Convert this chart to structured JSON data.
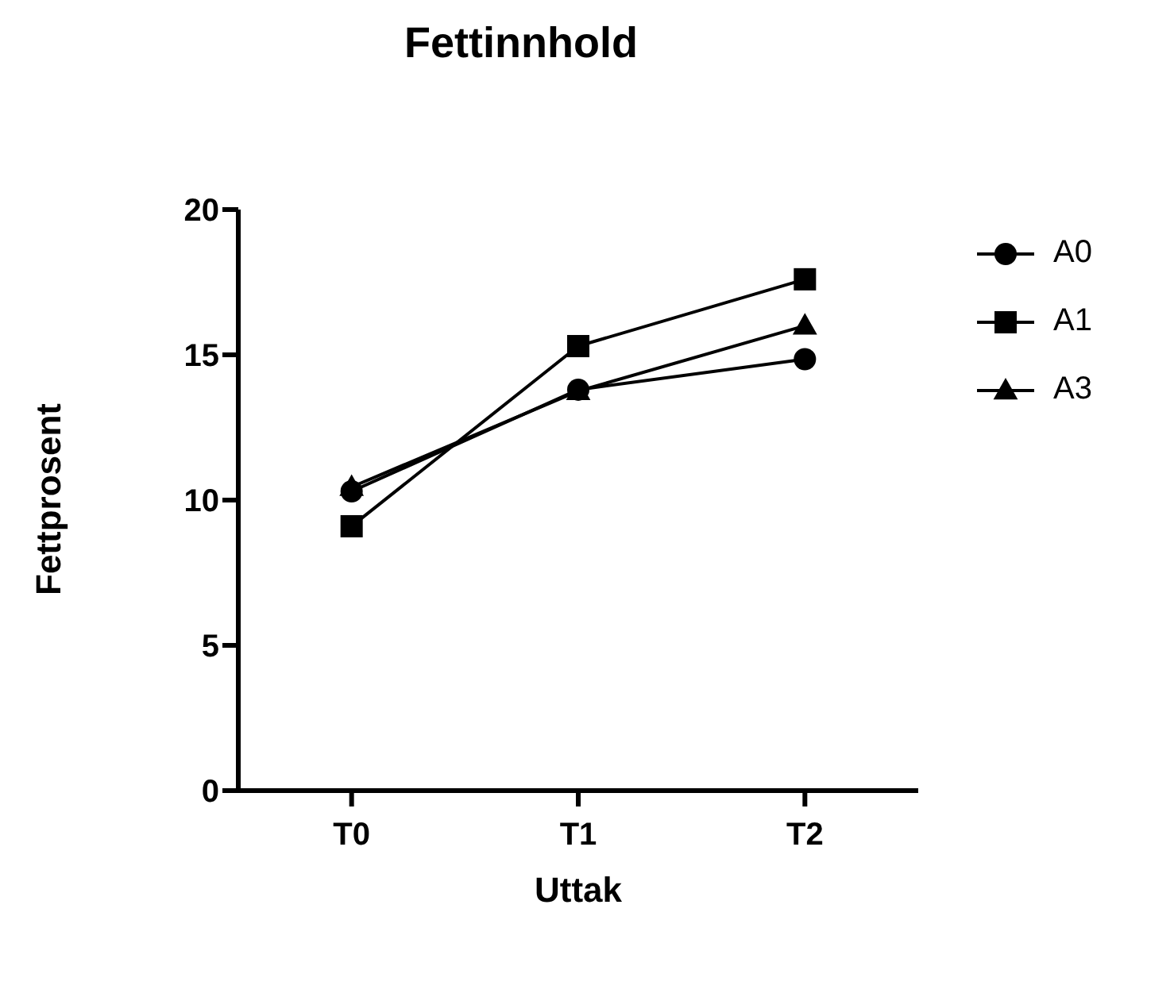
{
  "chart_data": {
    "type": "line",
    "title": "Fettinnhold",
    "xlabel": "Uttak",
    "ylabel": "Fettprosent",
    "categories": [
      "T0",
      "T1",
      "T2"
    ],
    "ylim": [
      0,
      20
    ],
    "yticks": [
      0,
      5,
      10,
      15,
      20
    ],
    "grid": false,
    "legend": "top right",
    "series": [
      {
        "name": "A0",
        "color": "#000000",
        "marker": "circle",
        "values": [
          10.3,
          13.8,
          14.85
        ]
      },
      {
        "name": "A1",
        "color": "#000000",
        "marker": "square",
        "values": [
          9.1,
          15.3,
          17.6
        ]
      },
      {
        "name": "A3",
        "color": "#000000",
        "marker": "triangle",
        "values": [
          10.45,
          13.75,
          16.0
        ]
      }
    ]
  }
}
